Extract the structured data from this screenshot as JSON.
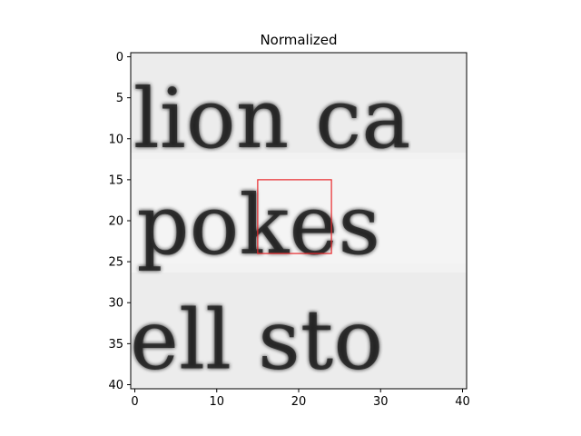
{
  "chart_data": {
    "type": "heatmap",
    "title": "Normalized",
    "xlabel": "",
    "ylabel": "",
    "xlim": [
      -0.5,
      40.5
    ],
    "ylim": [
      40.5,
      -0.5
    ],
    "xticks": [
      0,
      10,
      20,
      30,
      40
    ],
    "yticks": [
      0,
      5,
      10,
      15,
      20,
      25,
      30,
      35,
      40
    ],
    "colormap": "gray",
    "grid": false,
    "content": {
      "description": "grayscale crop of scanned text showing three rows of words",
      "text_rows": [
        {
          "text": "lion ca",
          "baseline_row": 11
        },
        {
          "text": "pokes",
          "baseline_row": 24
        },
        {
          "text": "ell sto",
          "baseline_row": 38
        }
      ]
    },
    "highlight_box": {
      "x0": 15,
      "x1": 24,
      "y0": 15,
      "y1": 24,
      "color": "#e8282b"
    }
  }
}
